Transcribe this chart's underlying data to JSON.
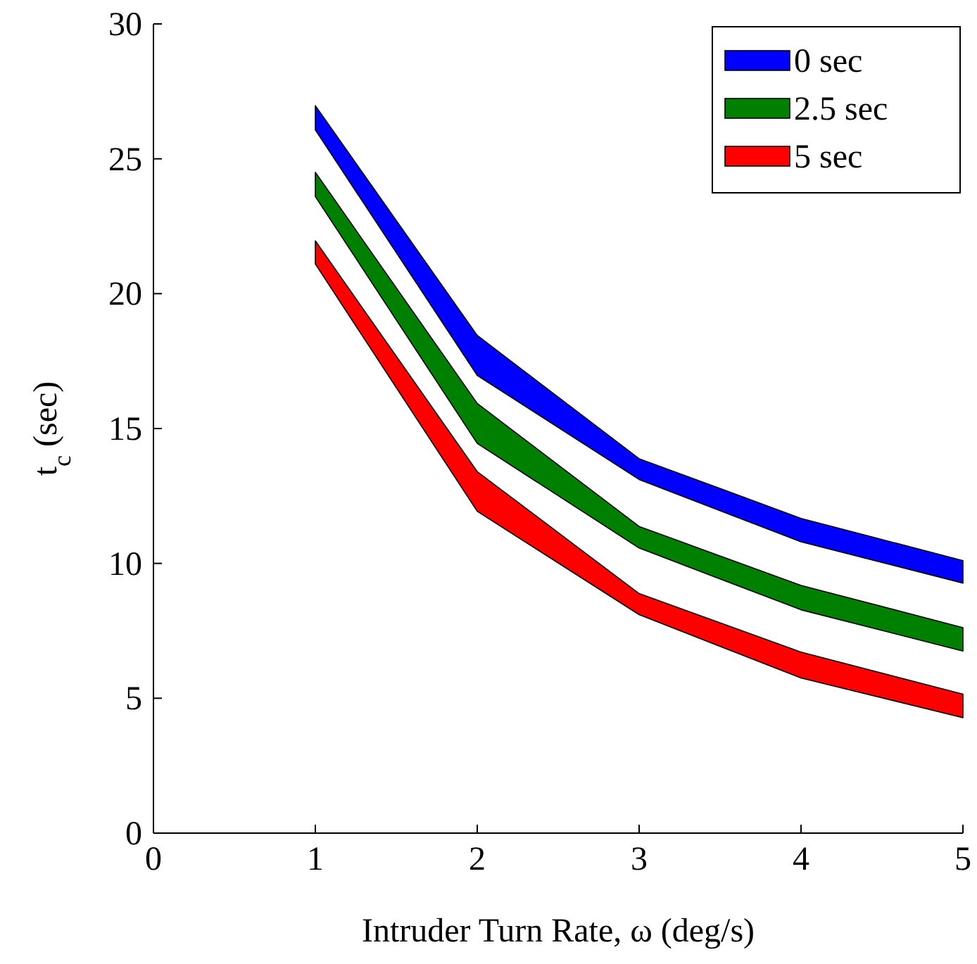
{
  "chart_data": {
    "type": "area",
    "xlabel": "Intruder Turn Rate, ω (deg/s)",
    "ylabel": "t$_{c}$ (sec)",
    "x": [
      1,
      2,
      3,
      4,
      5
    ],
    "series": [
      {
        "name": "0 sec",
        "color": "#0000ff",
        "values": [
          null,
          null,
          null,
          null,
          null
        ],
        "lower": [
          26.07,
          16.97,
          13.11,
          10.8,
          9.27
        ],
        "upper": [
          26.97,
          18.45,
          13.88,
          11.67,
          10.1
        ]
      },
      {
        "name": "2.5 sec",
        "color": "#008000",
        "values": [
          null,
          null,
          null,
          null,
          null
        ],
        "lower": [
          23.6,
          14.45,
          10.57,
          8.28,
          6.75
        ],
        "upper": [
          24.5,
          15.93,
          11.37,
          9.18,
          7.62
        ]
      },
      {
        "name": "5 sec",
        "color": "#ff0000",
        "values": [
          null,
          null,
          null,
          null,
          null
        ],
        "lower": [
          21.1,
          11.93,
          8.1,
          5.75,
          4.28
        ],
        "upper": [
          21.96,
          13.4,
          8.88,
          6.71,
          5.15
        ]
      }
    ],
    "xlim": [
      0,
      5
    ],
    "xticks": [
      0,
      1,
      2,
      3,
      4,
      5
    ],
    "ylim": [
      0,
      30
    ],
    "yticks": [
      0,
      5,
      10,
      15,
      20,
      25,
      30
    ],
    "grid": false,
    "legend": "top right"
  }
}
